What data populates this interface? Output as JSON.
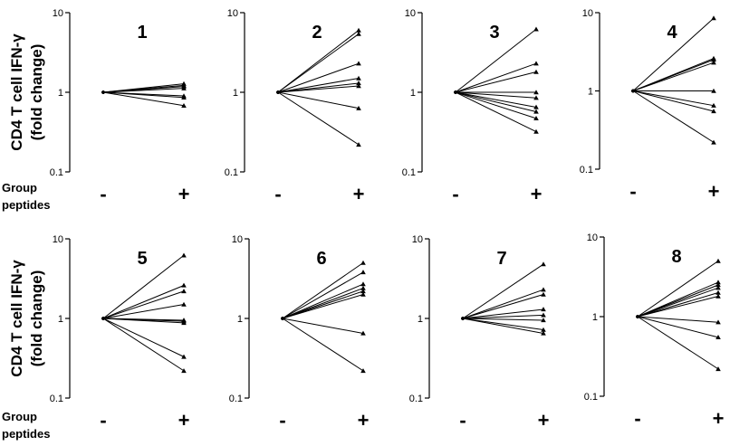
{
  "y_axis_label_line1": "CD4 T cell IFN-γ",
  "y_axis_label_line2": "(fold change)",
  "group_label_line1": "Group",
  "group_label_line2": "peptides",
  "chart_data": [
    {
      "type": "line",
      "title": "1",
      "categories": [
        "-",
        "+"
      ],
      "yscale": "log",
      "ylim": [
        0.1,
        10
      ],
      "yticks": [
        "0.1",
        "1",
        "10"
      ],
      "series": [
        {
          "values": [
            1,
            1.28
          ]
        },
        {
          "values": [
            1,
            1.22
          ]
        },
        {
          "values": [
            1,
            1.18
          ]
        },
        {
          "values": [
            1,
            1.12
          ]
        },
        {
          "values": [
            1,
            0.9
          ]
        },
        {
          "values": [
            1,
            0.86
          ]
        },
        {
          "values": [
            1,
            0.68
          ]
        }
      ]
    },
    {
      "type": "line",
      "title": "2",
      "categories": [
        "-",
        "+"
      ],
      "yscale": "log",
      "ylim": [
        0.1,
        10
      ],
      "yticks": [
        "0.1",
        "1",
        "10"
      ],
      "series": [
        {
          "values": [
            1,
            6.0
          ]
        },
        {
          "values": [
            1,
            5.4
          ]
        },
        {
          "values": [
            1,
            2.3
          ]
        },
        {
          "values": [
            1,
            1.5
          ]
        },
        {
          "values": [
            1,
            1.3
          ]
        },
        {
          "values": [
            1,
            1.2
          ]
        },
        {
          "values": [
            1,
            0.63
          ]
        },
        {
          "values": [
            1,
            0.22
          ]
        }
      ]
    },
    {
      "type": "line",
      "title": "3",
      "categories": [
        "-",
        "+"
      ],
      "yscale": "log",
      "ylim": [
        0.1,
        10
      ],
      "yticks": [
        "0.1",
        "1",
        "10"
      ],
      "series": [
        {
          "values": [
            1,
            6.2
          ]
        },
        {
          "values": [
            1,
            2.3
          ]
        },
        {
          "values": [
            1,
            1.8
          ]
        },
        {
          "values": [
            1,
            1.0
          ]
        },
        {
          "values": [
            1,
            0.85
          ]
        },
        {
          "values": [
            1,
            0.65
          ]
        },
        {
          "values": [
            1,
            0.57
          ]
        },
        {
          "values": [
            1,
            0.47
          ]
        },
        {
          "values": [
            1,
            0.32
          ]
        }
      ]
    },
    {
      "type": "line",
      "title": "4",
      "categories": [
        "-",
        "+"
      ],
      "yscale": "log",
      "ylim": [
        0.1,
        10
      ],
      "yticks": [
        "0.1",
        "1",
        "10"
      ],
      "series": [
        {
          "values": [
            1,
            8.5
          ]
        },
        {
          "values": [
            1,
            2.6
          ]
        },
        {
          "values": [
            1,
            2.5
          ]
        },
        {
          "values": [
            1,
            2.3
          ]
        },
        {
          "values": [
            1,
            1.0
          ]
        },
        {
          "values": [
            1,
            0.65
          ]
        },
        {
          "values": [
            1,
            0.55
          ]
        },
        {
          "values": [
            1,
            0.22
          ]
        }
      ]
    },
    {
      "type": "line",
      "title": "5",
      "categories": [
        "-",
        "+"
      ],
      "yscale": "log",
      "ylim": [
        0.1,
        10
      ],
      "yticks": [
        "0.1",
        "1",
        "10"
      ],
      "series": [
        {
          "values": [
            1,
            6.2
          ]
        },
        {
          "values": [
            1,
            2.6
          ]
        },
        {
          "values": [
            1,
            2.2
          ]
        },
        {
          "values": [
            1,
            1.5
          ]
        },
        {
          "values": [
            1,
            0.95
          ]
        },
        {
          "values": [
            1,
            0.92
          ]
        },
        {
          "values": [
            1,
            0.88
          ]
        },
        {
          "values": [
            1,
            0.33
          ]
        },
        {
          "values": [
            1,
            0.22
          ]
        }
      ]
    },
    {
      "type": "line",
      "title": "6",
      "categories": [
        "-",
        "+"
      ],
      "yscale": "log",
      "ylim": [
        0.1,
        10
      ],
      "yticks": [
        "0.1",
        "1",
        "10"
      ],
      "series": [
        {
          "values": [
            1,
            5.0
          ]
        },
        {
          "values": [
            1,
            3.8
          ]
        },
        {
          "values": [
            1,
            2.7
          ]
        },
        {
          "values": [
            1,
            2.4
          ]
        },
        {
          "values": [
            1,
            2.2
          ]
        },
        {
          "values": [
            1,
            2.0
          ]
        },
        {
          "values": [
            1,
            0.65
          ]
        },
        {
          "values": [
            1,
            0.22
          ]
        }
      ]
    },
    {
      "type": "line",
      "title": "7",
      "categories": [
        "-",
        "+"
      ],
      "yscale": "log",
      "ylim": [
        0.1,
        10
      ],
      "yticks": [
        "0.1",
        "1",
        "10"
      ],
      "series": [
        {
          "values": [
            1,
            4.8
          ]
        },
        {
          "values": [
            1,
            2.3
          ]
        },
        {
          "values": [
            1,
            2.0
          ]
        },
        {
          "values": [
            1,
            1.3
          ]
        },
        {
          "values": [
            1,
            1.1
          ]
        },
        {
          "values": [
            1,
            0.95
          ]
        },
        {
          "values": [
            1,
            0.72
          ]
        },
        {
          "values": [
            1,
            0.65
          ]
        }
      ]
    },
    {
      "type": "line",
      "title": "8",
      "categories": [
        "-",
        "+"
      ],
      "yscale": "log",
      "ylim": [
        0.1,
        10
      ],
      "yticks": [
        "0.1",
        "1",
        "10"
      ],
      "series": [
        {
          "values": [
            1,
            5.0
          ]
        },
        {
          "values": [
            1,
            2.7
          ]
        },
        {
          "values": [
            1,
            2.5
          ]
        },
        {
          "values": [
            1,
            2.3
          ]
        },
        {
          "values": [
            1,
            2.0
          ]
        },
        {
          "values": [
            1,
            1.8
          ]
        },
        {
          "values": [
            1,
            0.85
          ]
        },
        {
          "values": [
            1,
            0.55
          ]
        },
        {
          "values": [
            1,
            0.22
          ]
        }
      ]
    }
  ]
}
